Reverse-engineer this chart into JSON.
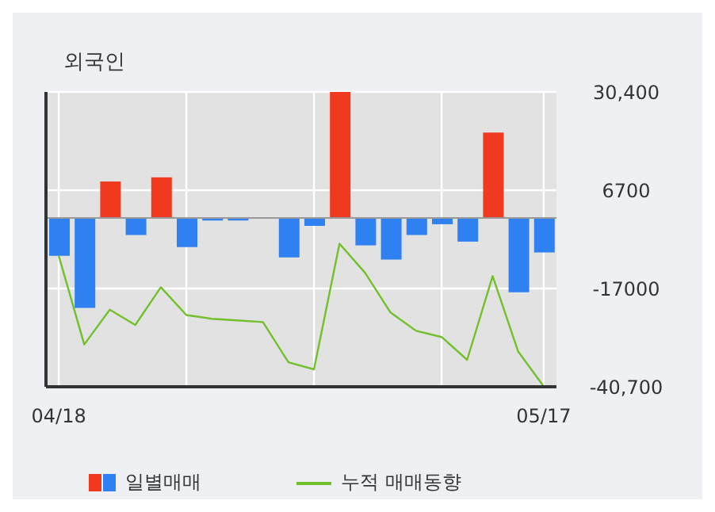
{
  "chart_data": {
    "type": "bar",
    "title": "외국인",
    "categories": [
      "04/18",
      null,
      null,
      null,
      null,
      null,
      null,
      null,
      null,
      null,
      null,
      null,
      null,
      null,
      null,
      null,
      null,
      null,
      null,
      "05/17"
    ],
    "series": [
      {
        "name": "일별매매",
        "colors": [
          "#2f80f0",
          "#2f80f0",
          "#f03a1f",
          "#2f80f0",
          "#f03a1f",
          "#2f80f0",
          "#2f80f0",
          "#2f80f0",
          "#2f80f0",
          "#2f80f0",
          "#2f80f0",
          "#f03a1f",
          "#2f80f0",
          "#2f80f0",
          "#2f80f0",
          "#2f80f0",
          "#2f80f0",
          "#f03a1f",
          "#2f80f0",
          "#2f80f0"
        ],
        "values": [
          -9100,
          -21700,
          8800,
          -4100,
          9800,
          -7000,
          -600,
          -600,
          0,
          -9500,
          -1900,
          30400,
          -6600,
          -10000,
          -4100,
          -1500,
          -5700,
          20600,
          -17900,
          -8300
        ]
      },
      {
        "name": "누적 매매동향",
        "type": "line",
        "color": "#72c02c",
        "values": [
          -9100,
          -30500,
          -22100,
          -25800,
          -16700,
          -23400,
          -24300,
          -24700,
          -25100,
          -34800,
          -36500,
          -6200,
          -13200,
          -22800,
          -27200,
          -28700,
          -34200,
          -14000,
          -32200,
          -40600
        ]
      }
    ],
    "ylim": [
      -40700,
      30400
    ],
    "yticks": [
      {
        "value": 30400,
        "label": "30,400"
      },
      6700,
      -17000,
      {
        "value": -40700,
        "label": "-40,700"
      }
    ],
    "ref_lines": [
      {
        "axis": "y",
        "value": 0,
        "color": "#999999"
      }
    ],
    "grid": true,
    "legend": "bottom",
    "marker": "none",
    "line_style": "solid"
  }
}
